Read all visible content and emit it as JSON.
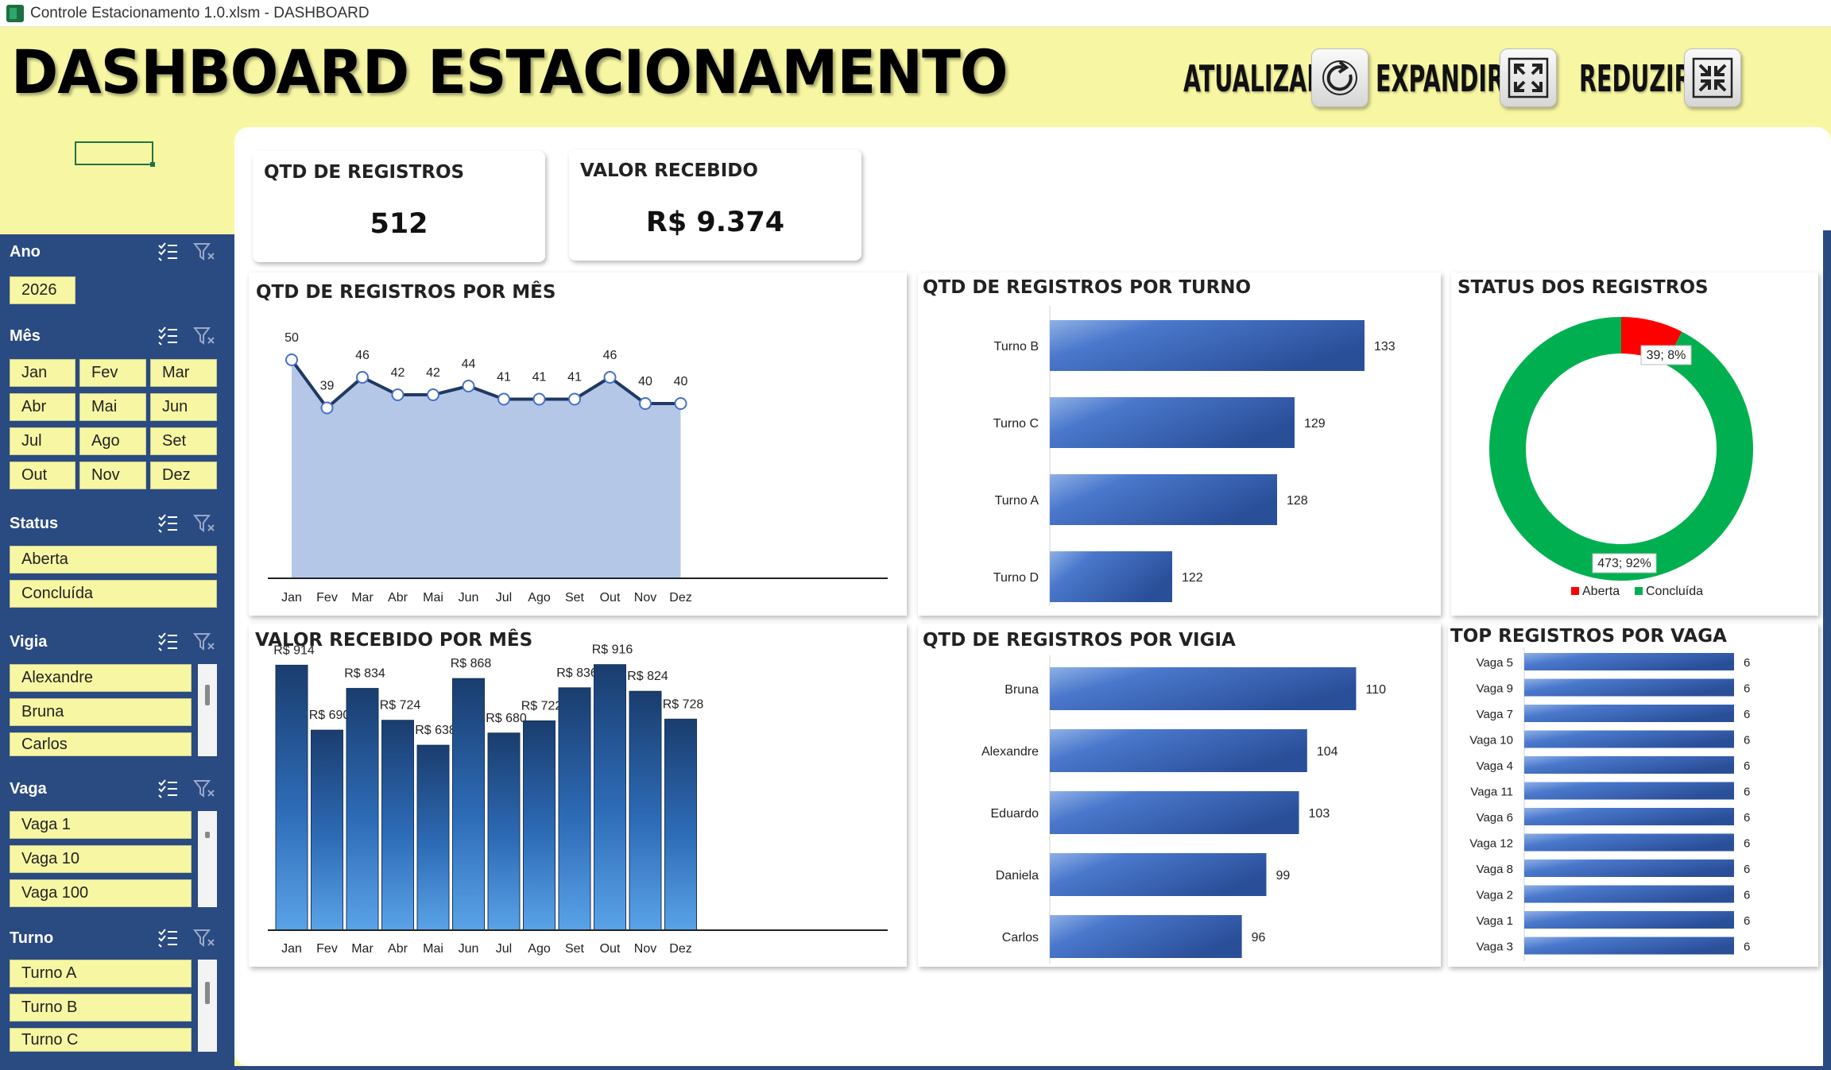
{
  "window": {
    "title": "Controle Estacionamento 1.0.xlsm - DASHBOARD"
  },
  "dashboard": {
    "title": "DASHBOARD ESTACIONAMENTO",
    "buttons": {
      "refresh": "ATUALIZAR",
      "expand": "EXPANDIR",
      "reduce": "REDUZIR"
    }
  },
  "colors": {
    "yellow": "#f7f7a3",
    "navy": "#2a4a82",
    "blue": "#3d6fc2",
    "green": "#00b050",
    "red": "#ff0000"
  },
  "slicers": {
    "ano": {
      "title": "Ano",
      "items": [
        "2026"
      ]
    },
    "mes": {
      "title": "Mês",
      "items": [
        "Jan",
        "Fev",
        "Mar",
        "Abr",
        "Mai",
        "Jun",
        "Jul",
        "Ago",
        "Set",
        "Out",
        "Nov",
        "Dez"
      ]
    },
    "status": {
      "title": "Status",
      "items": [
        "Aberta",
        "Concluída"
      ]
    },
    "vigia": {
      "title": "Vigia",
      "items": [
        "Alexandre",
        "Bruna",
        "Carlos"
      ]
    },
    "vaga": {
      "title": "Vaga",
      "items": [
        "Vaga 1",
        "Vaga 10",
        "Vaga 100"
      ]
    },
    "turno": {
      "title": "Turno",
      "items": [
        "Turno A",
        "Turno B",
        "Turno C"
      ]
    }
  },
  "kpis": {
    "registros": {
      "title": "QTD DE REGISTROS",
      "value": "512"
    },
    "valor": {
      "title": "VALOR RECEBIDO",
      "value": "R$ 9.374"
    }
  },
  "panels": {
    "registros_mes": "QTD DE REGISTROS POR MÊS",
    "valor_mes": "VALOR RECEBIDO POR MÊS",
    "registros_turno": "QTD DE REGISTROS POR TURNO",
    "registros_vigia": "QTD DE REGISTROS POR VIGIA",
    "status": "STATUS DOS REGISTROS",
    "vagas": "TOP REGISTROS POR VAGA"
  },
  "chart_data": [
    {
      "type": "area",
      "title": "QTD DE REGISTROS POR MÊS",
      "categories": [
        "Jan",
        "Fev",
        "Mar",
        "Abr",
        "Mai",
        "Jun",
        "Jul",
        "Ago",
        "Set",
        "Out",
        "Nov",
        "Dez"
      ],
      "values": [
        50,
        39,
        46,
        42,
        42,
        44,
        41,
        41,
        41,
        46,
        40,
        40
      ],
      "ylim": [
        0,
        60
      ]
    },
    {
      "type": "bar",
      "title": "VALOR RECEBIDO POR MÊS",
      "categories": [
        "Jan",
        "Fev",
        "Mar",
        "Abr",
        "Mai",
        "Jun",
        "Jul",
        "Ago",
        "Set",
        "Out",
        "Nov",
        "Dez"
      ],
      "values": [
        914,
        690,
        834,
        724,
        638,
        868,
        680,
        722,
        836,
        916,
        824,
        728
      ],
      "labels": [
        "R$ 914",
        "R$ 690",
        "R$ 834",
        "R$ 724",
        "R$ 638",
        "R$ 868",
        "R$ 680",
        "R$ 722",
        "R$ 836",
        "R$ 916",
        "R$ 824",
        "R$ 728"
      ],
      "ylim": [
        0,
        1000
      ]
    },
    {
      "type": "bar",
      "orientation": "horizontal",
      "title": "QTD DE REGISTROS POR TURNO",
      "categories": [
        "Turno B",
        "Turno C",
        "Turno A",
        "Turno D"
      ],
      "values": [
        133,
        129,
        128,
        122
      ],
      "xlim": [
        115,
        135
      ]
    },
    {
      "type": "pie",
      "title": "STATUS DOS REGISTROS",
      "categories": [
        "Aberta",
        "Concluída"
      ],
      "values": [
        39,
        473
      ],
      "labels": [
        "39; 8%",
        "473; 92%"
      ],
      "colors": [
        "#ff0000",
        "#00b050"
      ],
      "legend": "bottom"
    },
    {
      "type": "bar",
      "orientation": "horizontal",
      "title": "QTD DE REGISTROS POR VIGIA",
      "categories": [
        "Bruna",
        "Alexandre",
        "Eduardo",
        "Daniela",
        "Carlos"
      ],
      "values": [
        110,
        104,
        103,
        99,
        96
      ],
      "xlim": [
        90,
        112
      ]
    },
    {
      "type": "bar",
      "orientation": "horizontal",
      "title": "TOP REGISTROS POR VAGA",
      "categories": [
        "Vaga 5",
        "Vaga 9",
        "Vaga 7",
        "Vaga 10",
        "Vaga 4",
        "Vaga 11",
        "Vaga 6",
        "Vaga 12",
        "Vaga 8",
        "Vaga 2",
        "Vaga 1",
        "Vaga 3"
      ],
      "values": [
        6,
        6,
        6,
        6,
        6,
        6,
        6,
        6,
        6,
        6,
        6,
        6
      ],
      "xlim": [
        0,
        6
      ]
    }
  ]
}
